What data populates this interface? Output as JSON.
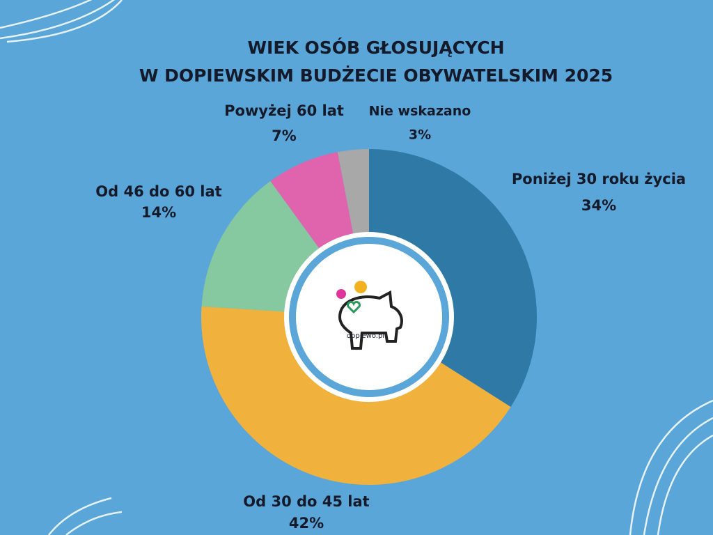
{
  "chart_data": {
    "type": "donut",
    "title": [
      "WIEK OSÓB GŁOSUJĄCYCH",
      "W DOPIEWSKIM BUDŻECIE OBYWATELSKIM 2025"
    ],
    "categories": [
      "Poniżej 30 roku życia",
      "Od 30 do 45 lat",
      "Od 46 do 60 lat",
      "Powyżej 60 lat",
      "Nie wskazano"
    ],
    "values": [
      34,
      42,
      14,
      7,
      3
    ],
    "value_labels": [
      "34%",
      "42%",
      "14%",
      "7%",
      "3%"
    ],
    "colors": [
      "#2e79a5",
      "#f0b23c",
      "#86c8a0",
      "#df64ad",
      "#a8a8a8"
    ]
  },
  "logo": {
    "text": "dopiewo.pl"
  }
}
